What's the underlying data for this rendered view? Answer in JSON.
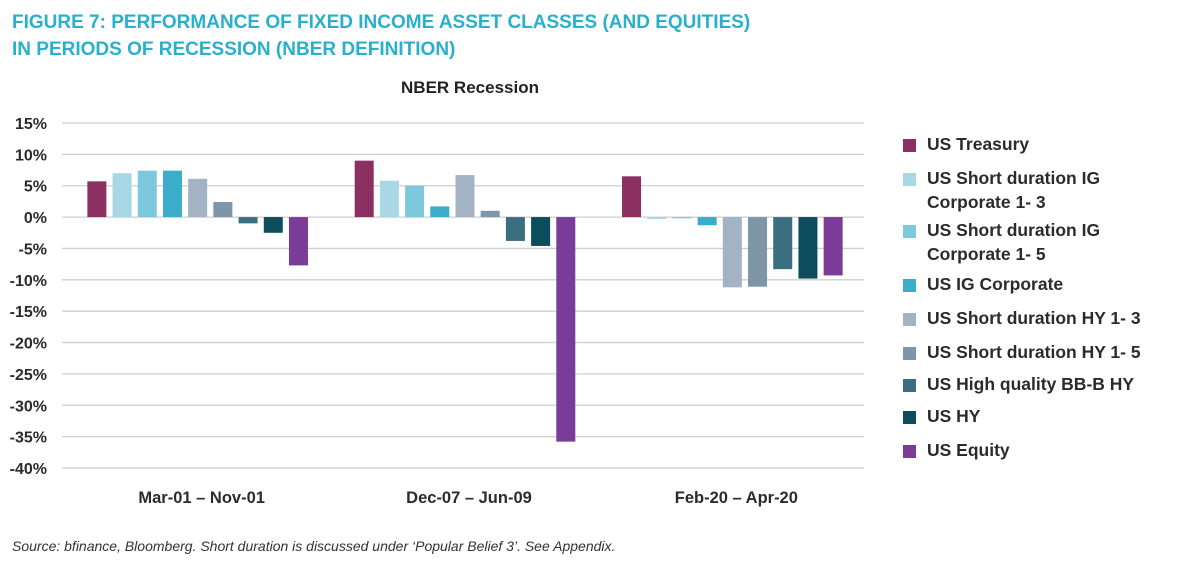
{
  "figure": {
    "title_line1": "FIGURE 7: PERFORMANCE OF FIXED INCOME ASSET CLASSES (AND EQUITIES)",
    "title_line2": "IN PERIODS OF RECESSION (NBER DEFINITION)"
  },
  "source_note": "Source: bfinance, Bloomberg. Short duration is discussed under ‘Popular Belief 3’. See Appendix.",
  "chart_data": {
    "type": "bar",
    "title": "NBER Recession",
    "xlabel": "",
    "ylabel": "",
    "ylim": [
      -0.4,
      0.15
    ],
    "yticks": [
      "15%",
      "10%",
      "5%",
      "0%",
      "-5%",
      "-10%",
      "-15%",
      "-20%",
      "-25%",
      "-30%",
      "-35%",
      "-40%"
    ],
    "grid": true,
    "legend_position": "right",
    "categories": [
      "Mar-01 – Nov-01",
      "Dec-07 – Jun-09",
      "Feb-20 – Apr-20"
    ],
    "series": [
      {
        "name": "US Treasury",
        "color": "#8b3060",
        "values": [
          0.057,
          0.09,
          0.065
        ]
      },
      {
        "name": "US Short duration IG Corporate 1- 3",
        "color": "#a8d7e6",
        "values": [
          0.07,
          0.058,
          -0.003
        ]
      },
      {
        "name": "US Short duration IG Corporate 1- 5",
        "color": "#7ec8dd",
        "values": [
          0.074,
          0.05,
          -0.002
        ]
      },
      {
        "name": "US IG Corporate",
        "color": "#3aadc8",
        "values": [
          0.074,
          0.017,
          -0.013
        ]
      },
      {
        "name": "US Short duration HY 1- 3",
        "color": "#a3b3c3",
        "values": [
          0.061,
          0.067,
          -0.112
        ]
      },
      {
        "name": "US Short duration HY 1- 5",
        "color": "#7f96a8",
        "values": [
          0.024,
          0.01,
          -0.111
        ]
      },
      {
        "name": "US High quality BB-B HY",
        "color": "#3c6e82",
        "values": [
          -0.01,
          -0.038,
          -0.083
        ]
      },
      {
        "name": "US HY",
        "color": "#0d4c5d",
        "values": [
          -0.025,
          -0.046,
          -0.098
        ]
      },
      {
        "name": "US Equity",
        "color": "#7a3c97",
        "values": [
          -0.077,
          -0.358,
          -0.093
        ]
      }
    ]
  }
}
